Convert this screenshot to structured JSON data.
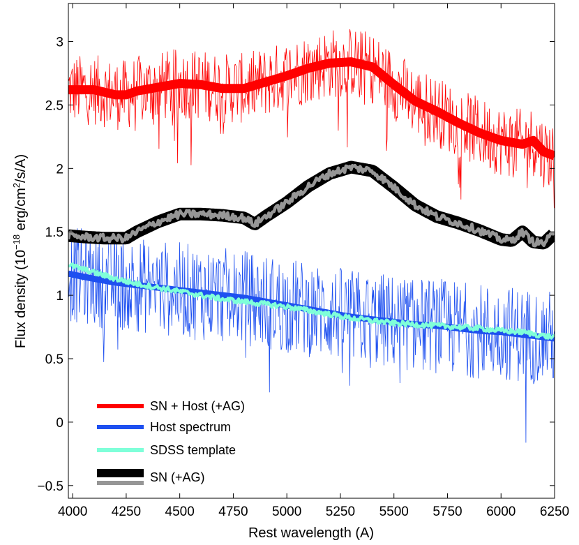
{
  "chart_data": {
    "type": "line",
    "title": "",
    "xlabel": "Rest wavelength  (A)",
    "ylabel_main": "Flux density  (10",
    "ylabel_exp1": "−18",
    "ylabel_mid": " erg/cm",
    "ylabel_exp2": "2",
    "ylabel_end": "/s/A)",
    "xlim": [
      3980,
      6250
    ],
    "ylim": [
      -0.6,
      3.3
    ],
    "xticks": [
      4000,
      4250,
      4500,
      4750,
      5000,
      5250,
      5500,
      5750,
      6000,
      6250
    ],
    "xtick_labels": [
      "4000",
      "4250",
      "4500",
      "4750",
      "5000",
      "5250",
      "5500",
      "5750",
      "6000",
      "6250"
    ],
    "yticks": [
      -0.5,
      0,
      0.5,
      1,
      1.5,
      2,
      2.5,
      3
    ],
    "ytick_labels": [
      "−0.5",
      "0",
      "0.5",
      "1",
      "1.5",
      "2",
      "2.5",
      "3"
    ],
    "grid": false,
    "legend_position": "bottom-left",
    "series": [
      {
        "name": "SN + Host (+AG)",
        "color": "#ff0000",
        "smooth": {
          "x": [
            3980,
            4100,
            4200,
            4250,
            4300,
            4400,
            4500,
            4600,
            4700,
            4800,
            4900,
            5000,
            5100,
            5200,
            5300,
            5400,
            5500,
            5600,
            5700,
            5800,
            5900,
            6000,
            6100,
            6150,
            6200,
            6250
          ],
          "y": [
            2.62,
            2.62,
            2.58,
            2.58,
            2.61,
            2.64,
            2.67,
            2.66,
            2.63,
            2.63,
            2.68,
            2.73,
            2.79,
            2.83,
            2.84,
            2.8,
            2.66,
            2.53,
            2.45,
            2.36,
            2.28,
            2.22,
            2.19,
            2.22,
            2.13,
            2.1
          ]
        },
        "noise_amp": 0.28
      },
      {
        "name": "Host spectrum",
        "color": "#1e50f0",
        "smooth": {
          "x": [
            3980,
            4100,
            4200,
            4300,
            4400,
            4500,
            4600,
            4700,
            4800,
            4900,
            5000,
            5100,
            5200,
            5300,
            5400,
            5500,
            5600,
            5700,
            5800,
            5900,
            6000,
            6100,
            6200,
            6250
          ],
          "y": [
            1.17,
            1.13,
            1.1,
            1.08,
            1.06,
            1.04,
            1.02,
            1.0,
            0.98,
            0.95,
            0.92,
            0.89,
            0.86,
            0.83,
            0.81,
            0.79,
            0.77,
            0.76,
            0.74,
            0.72,
            0.71,
            0.69,
            0.67,
            0.66
          ]
        },
        "noise_amp": 0.38
      },
      {
        "name": "SDSS template",
        "color": "#7fffd9",
        "smooth": {
          "x": [
            3980,
            4100,
            4200,
            4300,
            4400,
            4500,
            4600,
            4700,
            4800,
            4900,
            5000,
            5100,
            5200,
            5300,
            5400,
            5500,
            5600,
            5700,
            5800,
            5900,
            6000,
            6100,
            6200,
            6250
          ],
          "y": [
            1.24,
            1.18,
            1.13,
            1.09,
            1.06,
            1.03,
            1.0,
            0.97,
            0.95,
            0.93,
            0.91,
            0.88,
            0.85,
            0.82,
            0.8,
            0.78,
            0.77,
            0.76,
            0.75,
            0.74,
            0.72,
            0.71,
            0.68,
            0.67
          ]
        },
        "noise_amp": 0.02
      },
      {
        "name": "SN (+AG)",
        "color": "#000000",
        "color2": "#969696",
        "smooth": {
          "x": [
            3980,
            4050,
            4150,
            4250,
            4300,
            4400,
            4500,
            4600,
            4700,
            4800,
            4850,
            4900,
            5000,
            5100,
            5200,
            5300,
            5400,
            5500,
            5600,
            5700,
            5800,
            5900,
            6000,
            6050,
            6100,
            6150,
            6200,
            6250
          ],
          "y": [
            1.47,
            1.46,
            1.45,
            1.45,
            1.5,
            1.58,
            1.64,
            1.64,
            1.63,
            1.61,
            1.56,
            1.62,
            1.73,
            1.86,
            1.96,
            2.01,
            1.98,
            1.85,
            1.71,
            1.62,
            1.57,
            1.51,
            1.44,
            1.43,
            1.5,
            1.42,
            1.41,
            1.49
          ]
        },
        "noise_amp": 0.03
      }
    ],
    "legend": [
      {
        "label": "SN + Host (+AG)",
        "color": "#ff0000"
      },
      {
        "label": "Host spectrum",
        "color": "#1e50f0"
      },
      {
        "label": "SDSS template",
        "color": "#7fffd9"
      },
      {
        "label": "SN (+AG)",
        "color": "#000000",
        "color2": "#969696"
      }
    ]
  }
}
